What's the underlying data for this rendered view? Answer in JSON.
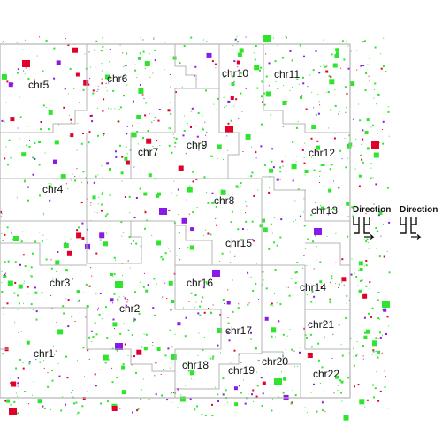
{
  "colors": {
    "boundary": "#b4b4b4",
    "green": "#2ee52e",
    "red": "#e0002a",
    "purple": "#8a18e6"
  },
  "chromosomes": [
    {
      "id": "chr1",
      "label": "chr1"
    },
    {
      "id": "chr2",
      "label": "chr2"
    },
    {
      "id": "chr3",
      "label": "chr3"
    },
    {
      "id": "chr4",
      "label": "chr4"
    },
    {
      "id": "chr5",
      "label": "chr5"
    },
    {
      "id": "chr6",
      "label": "chr6"
    },
    {
      "id": "chr7",
      "label": "chr7"
    },
    {
      "id": "chr8",
      "label": "chr8"
    },
    {
      "id": "chr9",
      "label": "chr9"
    },
    {
      "id": "chr10",
      "label": "chr10"
    },
    {
      "id": "chr11",
      "label": "chr11"
    },
    {
      "id": "chr12",
      "label": "chr12"
    },
    {
      "id": "chr13",
      "label": "chr13"
    },
    {
      "id": "chr14",
      "label": "chr14"
    },
    {
      "id": "chr15",
      "label": "chr15"
    },
    {
      "id": "chr16",
      "label": "chr16"
    },
    {
      "id": "chr17",
      "label": "chr17"
    },
    {
      "id": "chr18",
      "label": "chr18"
    },
    {
      "id": "chr19",
      "label": "chr19"
    },
    {
      "id": "chr20",
      "label": "chr20"
    },
    {
      "id": "chr21",
      "label": "chr21"
    },
    {
      "id": "chr22",
      "label": "chr22"
    }
  ],
  "legend": {
    "direction_left": "Direction",
    "direction_right": "Direction"
  }
}
